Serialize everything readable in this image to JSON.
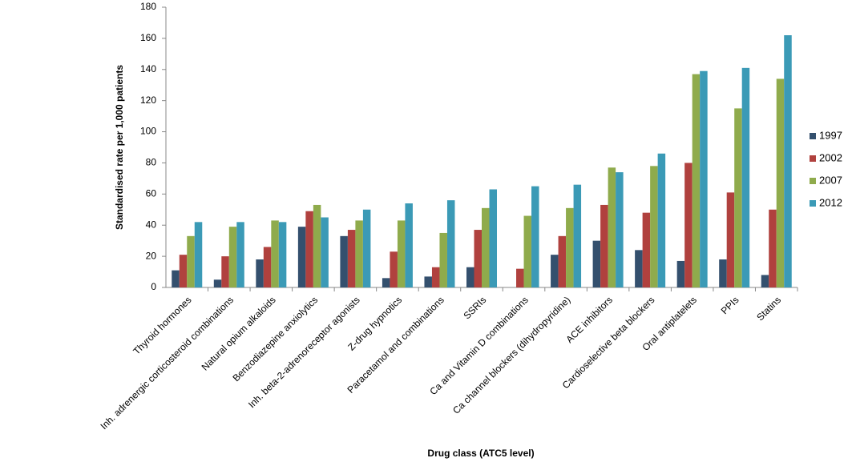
{
  "chart_data": {
    "type": "bar",
    "y_label": "Standardised rate per 1,000 patients",
    "x_label": "Drug class (ATC5 level)",
    "categories": [
      "Thyroid hormones",
      "Inh. adrenergic corticosteroid combinations",
      "Natural opium alkaloids",
      "Benzodiazepine anxiolytics",
      "Inh. beta-2-adrenoreceptor agonists",
      "Z-drug hypnotics",
      "Paracetamol and combinations",
      "SSRIs",
      "Ca and Vitamin D combinations",
      "Ca channel blockers (dihydropyridine)",
      "ACE inhibitors",
      "Cardioselective beta blockers",
      "Oral antiplatelets",
      "PPIs",
      "Statins"
    ],
    "series": [
      {
        "name": "1997",
        "color": "#34506e",
        "values": [
          11,
          5,
          18,
          39,
          33,
          6,
          7,
          13,
          0,
          21,
          30,
          24,
          17,
          18,
          8
        ]
      },
      {
        "name": "2002",
        "color": "#b0413e",
        "values": [
          21,
          20,
          26,
          49,
          37,
          23,
          13,
          37,
          12,
          33,
          53,
          48,
          80,
          61,
          50
        ]
      },
      {
        "name": "2007",
        "color": "#8fab4c",
        "values": [
          33,
          39,
          43,
          53,
          43,
          43,
          35,
          51,
          46,
          51,
          77,
          78,
          137,
          115,
          134
        ]
      },
      {
        "name": "2012",
        "color": "#3b9ab6",
        "values": [
          42,
          42,
          42,
          45,
          50,
          54,
          56,
          63,
          65,
          66,
          74,
          86,
          139,
          141,
          162
        ]
      }
    ],
    "ylim": [
      0,
      180
    ],
    "yticks": [
      0,
      20,
      40,
      60,
      80,
      100,
      120,
      140,
      160,
      180
    ],
    "grid": false,
    "legend": "right"
  }
}
